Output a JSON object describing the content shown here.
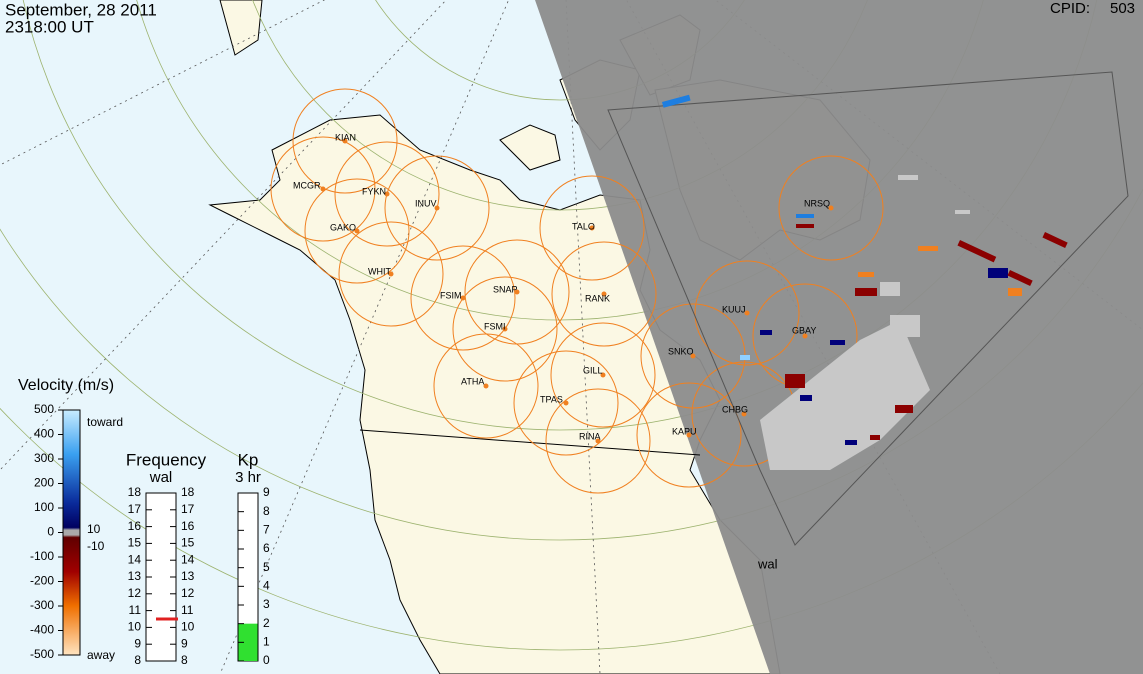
{
  "header": {
    "date": "September, 28 2011",
    "time": "2318:00 UT",
    "cpid_label": "CPID:",
    "cpid": "503"
  },
  "stations": [
    "KIAN",
    "MCGR",
    "FYKN",
    "INUV",
    "GAKO",
    "WHIT",
    "FSIM",
    "SNAP",
    "FSMI",
    "RANK",
    "TALO",
    "NRSQ",
    "KUUJ",
    "GBAY",
    "SNKO",
    "GILL",
    "ATHA",
    "TPAS",
    "RINA",
    "KAPU",
    "CHBG"
  ],
  "radar_label": "wal",
  "velocity_scale": {
    "title": "Velocity (m/s)",
    "ticks": [
      500,
      400,
      300,
      200,
      100,
      0,
      -100,
      -200,
      -300,
      -400,
      -500
    ],
    "toward": "toward",
    "away": "away",
    "zero_band": [
      10,
      -10
    ]
  },
  "frequency": {
    "title": "Frequency",
    "radar": "wal",
    "ticks": [
      18,
      17,
      16,
      15,
      14,
      13,
      12,
      11,
      10,
      9,
      8
    ],
    "value": 10.5
  },
  "kp": {
    "title": "Kp",
    "period": "3 hr",
    "ticks": [
      9,
      8,
      7,
      6,
      5,
      4,
      3,
      2,
      1,
      0
    ],
    "value": 2
  }
}
